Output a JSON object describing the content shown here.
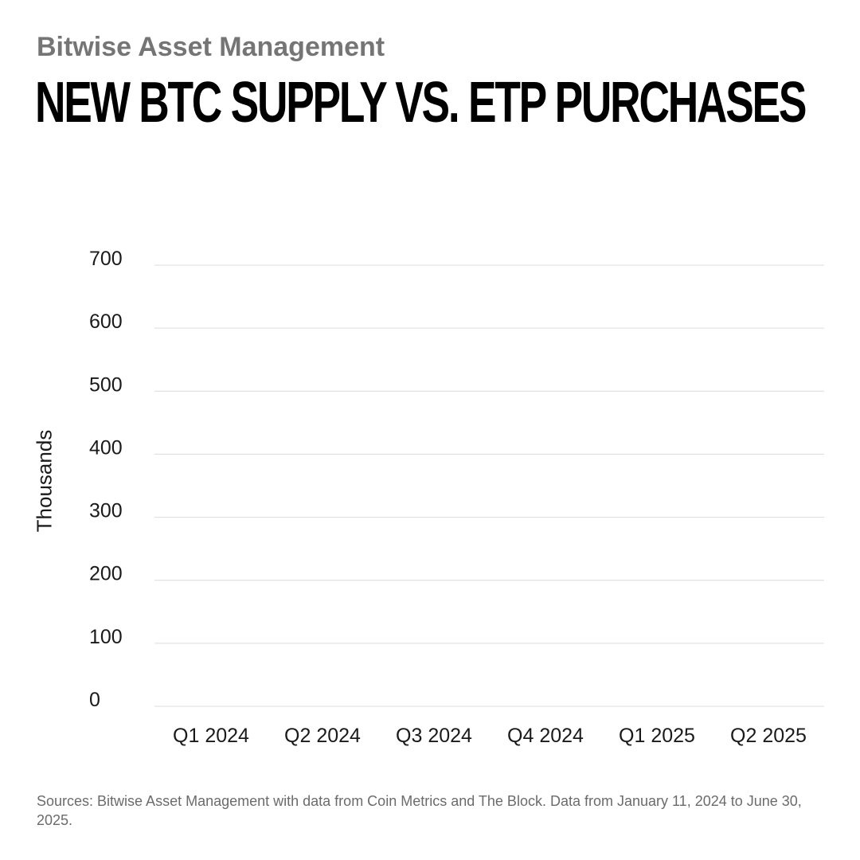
{
  "header": {
    "brand": "Bitwise Asset Management",
    "title": "NEW BTC SUPPLY VS. ETP PURCHASES"
  },
  "footer": {
    "source": "Sources: Bitwise Asset Management with data from Coin Metrics and The Block. Data from January 11, 2024 to June 30, 2025."
  },
  "colors": {
    "gridline": "#d9dcdf",
    "brand_text": "#757575",
    "title_text": "#000000"
  },
  "chart_data": {
    "type": "bar",
    "title": "NEW BTC SUPPLY VS. ETP PURCHASES",
    "xlabel": "",
    "ylabel": "Thousands",
    "categories": [
      "Q1 2024",
      "Q2 2024",
      "Q3 2024",
      "Q4 2024",
      "Q1 2025",
      "Q2 2025"
    ],
    "yticks": [
      0,
      100,
      200,
      300,
      400,
      500,
      600,
      700
    ],
    "ylim": [
      0,
      700
    ],
    "grid": true,
    "series": []
  }
}
